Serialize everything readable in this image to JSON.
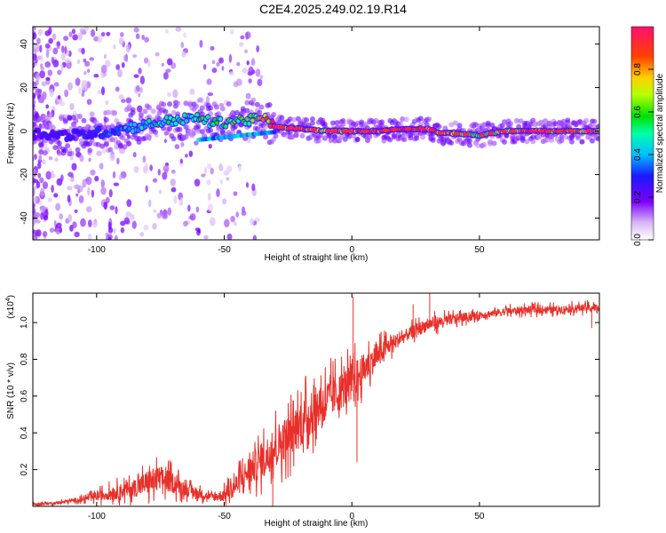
{
  "page_title": "C2E4.2025.249.02.19.R14",
  "chart_data": [
    {
      "type": "heatmap",
      "name": "spectrogram",
      "xlabel": "Height of straight line (km)",
      "ylabel": "Frequency (Hz)",
      "xlim": [
        -125,
        97
      ],
      "ylim": [
        -50,
        48
      ],
      "xticks": [
        -100,
        -50,
        0,
        50
      ],
      "xtick_labels": [
        "-100",
        "-50",
        "0",
        "50"
      ],
      "yticks": [
        -40,
        -20,
        0,
        20,
        40
      ],
      "ytick_labels": [
        "-40",
        "-20",
        "0",
        "20",
        "40"
      ],
      "ridge": {
        "x": [
          -125,
          -110,
          -100,
          -90,
          -80,
          -70,
          -60,
          -55,
          -50,
          -45,
          -40,
          -35,
          -30,
          -20,
          -10,
          0,
          10,
          20,
          30,
          35,
          40,
          50,
          60,
          70,
          80,
          90,
          97
        ],
        "freq": [
          -1,
          -2,
          -1,
          1,
          3,
          5,
          6,
          4,
          4,
          5,
          5,
          6,
          2,
          1,
          0,
          0,
          0,
          1,
          1,
          -1,
          -1,
          -2,
          0,
          0,
          0,
          0,
          0
        ],
        "amplitude": [
          0.2,
          0.25,
          0.3,
          0.35,
          0.45,
          0.5,
          0.5,
          0.5,
          0.55,
          0.55,
          0.6,
          0.7,
          0.9,
          0.85,
          0.8,
          0.85,
          0.9,
          0.9,
          0.85,
          0.8,
          0.8,
          0.6,
          0.75,
          0.85,
          0.8,
          0.8,
          0.75
        ]
      }
    },
    {
      "type": "colorbar",
      "name": "amplitude-colorbar",
      "label": "Normalized spectral amplitude",
      "range": [
        0.0,
        1.0
      ],
      "ticks": [
        0.0,
        0.2,
        0.4,
        0.6,
        0.8
      ],
      "tick_labels": [
        "0.0",
        "0.2",
        "0.4",
        "0.6",
        "0.8"
      ]
    },
    {
      "type": "line",
      "name": "snr",
      "xlabel": "Height of straight line (km)",
      "ylabel": "SNR (10 * v/v)",
      "scale_label": "(x10",
      "scale_exponent": "4",
      "scale_close": ")",
      "xlim": [
        -125,
        97
      ],
      "ylim": [
        0,
        1.16
      ],
      "xticks": [
        -100,
        -50,
        0,
        50
      ],
      "xtick_labels": [
        "-100",
        "-50",
        "0",
        "50"
      ],
      "yticks": [
        0.2,
        0.4,
        0.6,
        0.8,
        1.0
      ],
      "ytick_labels": [
        "0.2",
        "0.4",
        "0.6",
        "0.8",
        "1.0"
      ],
      "series": [
        {
          "name": "SNR",
          "color": "#e8302a",
          "x": [
            -125,
            -115,
            -105,
            -95,
            -85,
            -80,
            -75,
            -70,
            -65,
            -60,
            -55,
            -50,
            -45,
            -40,
            -35,
            -30,
            -25,
            -20,
            -15,
            -10,
            -5,
            0,
            5,
            10,
            15,
            20,
            25,
            30,
            40,
            50,
            60,
            70,
            80,
            90,
            97
          ],
          "values": [
            0.01,
            0.02,
            0.04,
            0.07,
            0.1,
            0.13,
            0.15,
            0.13,
            0.09,
            0.07,
            0.05,
            0.06,
            0.12,
            0.2,
            0.25,
            0.33,
            0.38,
            0.45,
            0.52,
            0.58,
            0.62,
            0.68,
            0.75,
            0.82,
            0.88,
            0.92,
            0.96,
            0.99,
            1.02,
            1.04,
            1.06,
            1.07,
            1.07,
            1.08,
            1.08
          ],
          "noise": [
            0.01,
            0.01,
            0.02,
            0.05,
            0.07,
            0.1,
            0.1,
            0.08,
            0.05,
            0.04,
            0.03,
            0.05,
            0.09,
            0.12,
            0.14,
            0.16,
            0.17,
            0.18,
            0.17,
            0.16,
            0.15,
            0.15,
            0.12,
            0.09,
            0.07,
            0.05,
            0.05,
            0.05,
            0.04,
            0.03,
            0.03,
            0.03,
            0.03,
            0.03,
            0.03
          ],
          "spikes": [
            {
              "x": 0.5,
              "value": 1.14
            },
            {
              "x": 30.5,
              "value": 1.16
            },
            {
              "x": 24,
              "value": 1.1
            },
            {
              "x": -31,
              "value": 0.0
            },
            {
              "x": 2,
              "value": 0.24
            },
            {
              "x": 94,
              "value": 0.97
            }
          ]
        }
      ]
    }
  ]
}
